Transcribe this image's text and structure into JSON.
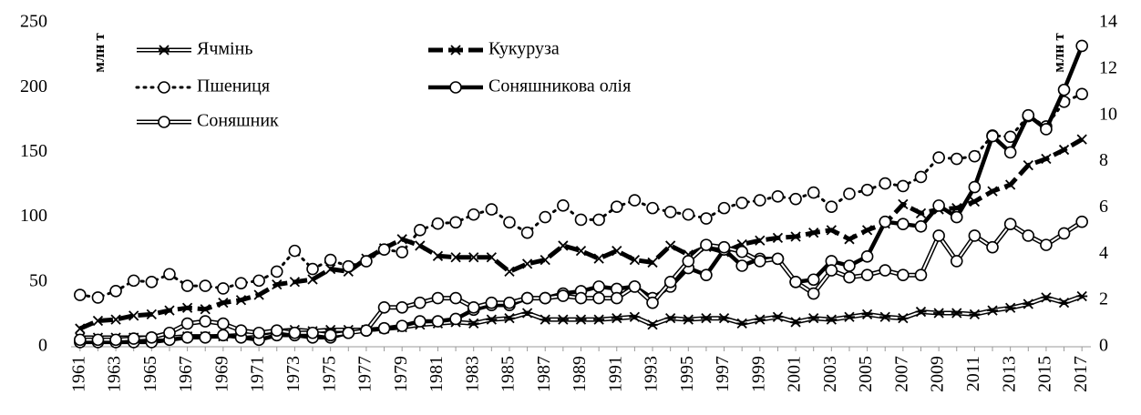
{
  "chart_data": {
    "type": "line",
    "y_label": "млн т",
    "y2_label": "млн т",
    "categories": [
      "1961",
      null,
      "1963",
      null,
      "1965",
      null,
      "1967",
      null,
      "1969",
      null,
      "1971",
      null,
      "1973",
      null,
      "1975",
      null,
      "1977",
      null,
      "1979",
      null,
      "1981",
      null,
      "1983",
      null,
      "1985",
      null,
      "1987",
      null,
      "1989",
      null,
      "1991",
      null,
      "1993",
      null,
      "1995",
      null,
      "1997",
      null,
      "1999",
      null,
      "2001",
      null,
      "2003",
      null,
      "2005",
      null,
      "2007",
      null,
      "2009",
      null,
      "2011",
      null,
      "2013",
      null,
      "2015",
      null,
      "2017"
    ],
    "ylim": [
      0,
      250
    ],
    "yticks": [
      0,
      50,
      100,
      150,
      200,
      250
    ],
    "y2lim": [
      0,
      14
    ],
    "y2ticks": [
      0,
      2,
      4,
      6,
      8,
      10,
      12,
      14
    ],
    "series": [
      {
        "name": "Ячмінь",
        "color": "#000000",
        "style": "double",
        "marker": "star",
        "values": [
          7,
          7,
          7,
          7,
          7,
          7,
          8,
          8,
          8,
          9,
          10,
          12,
          13,
          12,
          13,
          13,
          13,
          14,
          15,
          17,
          18,
          19,
          18,
          21,
          22,
          26,
          21,
          21,
          21,
          21,
          22,
          23,
          17,
          22,
          21,
          22,
          22,
          18,
          21,
          23,
          19,
          22,
          21,
          23,
          25,
          23,
          22,
          27,
          26,
          26,
          25,
          28,
          30,
          33,
          38,
          34,
          39
        ]
      },
      {
        "name": "Кукуруза",
        "color": "#000000",
        "style": "dash",
        "marker": "x",
        "values": [
          14,
          20,
          21,
          24,
          25,
          28,
          30,
          29,
          34,
          36,
          40,
          48,
          50,
          52,
          60,
          58,
          68,
          76,
          83,
          78,
          70,
          69,
          69,
          69,
          58,
          64,
          67,
          78,
          74,
          68,
          74,
          67,
          65,
          78,
          71,
          77,
          73,
          79,
          82,
          84,
          85,
          88,
          90,
          83,
          90,
          95,
          110,
          103,
          106,
          107,
          112,
          120,
          125,
          140,
          145,
          152,
          160
        ]
      },
      {
        "name": "Пшениця",
        "color": "#000000",
        "style": "dot",
        "marker": "circle",
        "values": [
          40,
          38,
          43,
          51,
          50,
          56,
          47,
          47,
          45,
          49,
          51,
          58,
          74,
          60,
          67,
          62,
          66,
          75,
          73,
          90,
          95,
          96,
          102,
          106,
          96,
          88,
          100,
          109,
          98,
          98,
          108,
          113,
          107,
          104,
          102,
          99,
          107,
          111,
          113,
          116,
          114,
          119,
          108,
          118,
          121,
          126,
          124,
          131,
          146,
          145,
          147,
          163,
          162,
          178,
          170,
          189,
          195
        ]
      },
      {
        "name": "Соняшникова олія",
        "color": "#000000",
        "style": "thick",
        "marker": "circle",
        "axis": "y2",
        "values": [
          0.2,
          0.2,
          0.2,
          0.2,
          0.2,
          0.3,
          0.4,
          0.4,
          0.5,
          0.4,
          0.3,
          0.5,
          0.5,
          0.4,
          0.4,
          0.6,
          0.7,
          0.8,
          0.9,
          1.1,
          1.1,
          1.2,
          1.6,
          1.8,
          1.8,
          2.1,
          2.1,
          2.3,
          2.4,
          2.6,
          2.5,
          2.6,
          2.1,
          2.6,
          3.4,
          3.1,
          4.2,
          3.5,
          3.8,
          3.8,
          2.8,
          2.9,
          3.7,
          3.5,
          3.9,
          5.4,
          5.3,
          5.2,
          6.1,
          5.6,
          6.9,
          9.1,
          8.4,
          10.0,
          9.4,
          11.1,
          13.0
        ]
      },
      {
        "name": "Соняшник",
        "color": "#000000",
        "style": "double",
        "marker": "circle",
        "axis": "y2",
        "values": [
          0.3,
          0.3,
          0.3,
          0.35,
          0.4,
          0.6,
          1.0,
          1.1,
          1.0,
          0.7,
          0.6,
          0.7,
          0.6,
          0.6,
          0.5,
          0.6,
          0.7,
          1.7,
          1.7,
          1.9,
          2.1,
          2.1,
          1.7,
          1.9,
          1.9,
          2.1,
          2.1,
          2.2,
          2.1,
          2.1,
          2.1,
          2.6,
          1.9,
          2.8,
          3.7,
          4.4,
          4.3,
          4.1,
          3.7,
          3.8,
          2.8,
          2.3,
          3.3,
          3.0,
          3.1,
          3.3,
          3.1,
          3.1,
          4.8,
          3.7,
          4.8,
          4.3,
          5.3,
          4.8,
          4.4,
          4.9,
          5.4
        ]
      }
    ]
  }
}
